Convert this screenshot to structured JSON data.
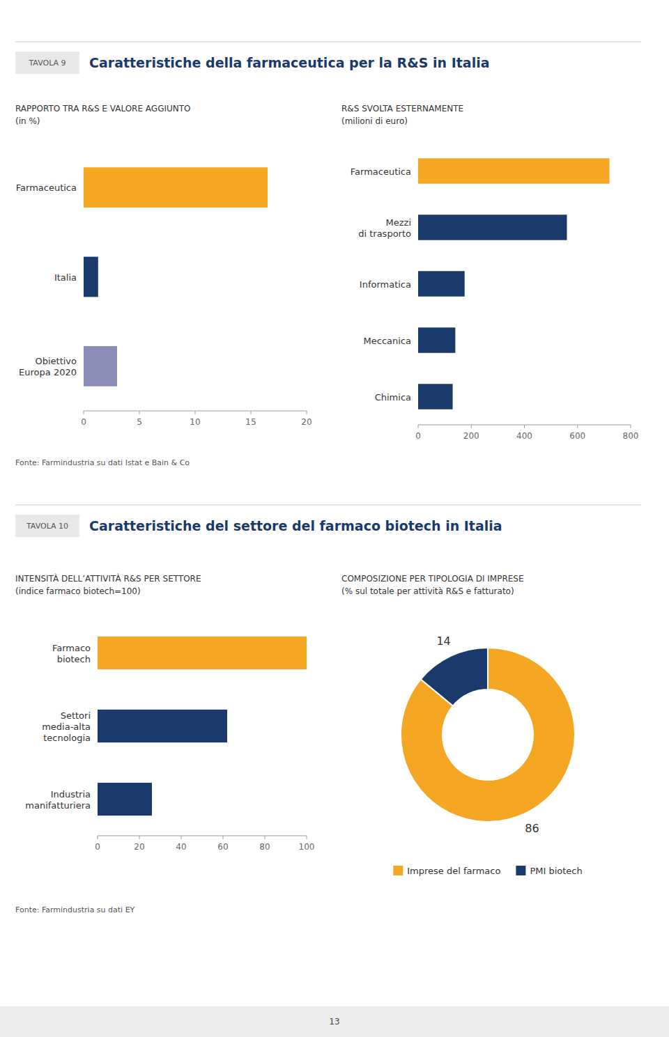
{
  "chart_data": [
    {
      "type": "bar",
      "orientation": "horizontal",
      "title": "RAPPORTO TRA R&S E VALORE AGGIUNTO",
      "subtitle": "(in %)",
      "categories": [
        "Farmaceutica",
        "Italia",
        "Obiettivo\nEuropa 2020"
      ],
      "values": [
        16.5,
        1.3,
        3.0
      ],
      "colors": [
        "#f5a623",
        "#1a3a6b",
        "#8b8db8"
      ],
      "xlim": [
        0,
        20
      ],
      "xticks": [
        0,
        5,
        10,
        15,
        20
      ],
      "grid": false,
      "data_labels": false,
      "annotations": [
        "TAVOLA 9",
        "Caratteristiche della farmaceutica per la R&S in Italia",
        "Fonte: Farmindustria su dati Istat e Bain & Co"
      ]
    },
    {
      "type": "bar",
      "orientation": "horizontal",
      "title": "R&S SVOLTA ESTERNAMENTE",
      "subtitle": "(milioni di euro)",
      "categories": [
        "Farmaceutica",
        "Mezzi\ndi trasporto",
        "Informatica",
        "Meccanica",
        "Chimica"
      ],
      "values": [
        720,
        560,
        175,
        140,
        130
      ],
      "colors": [
        "#f5a623",
        "#1a3a6b",
        "#1a3a6b",
        "#1a3a6b",
        "#1a3a6b"
      ],
      "xlim": [
        0,
        800
      ],
      "xticks": [
        0,
        200,
        400,
        600,
        800
      ],
      "grid": false,
      "data_labels": false
    },
    {
      "type": "bar",
      "orientation": "horizontal",
      "title": "INTENSITÀ DELL’ATTIVITÀ R&S PER SETTORE",
      "subtitle": "(indice farmaco biotech=100)",
      "categories": [
        "Farmaco\nbiotech",
        "Settori\nmedia-alta\ntecnologia",
        "Industria\nmanifatturiera"
      ],
      "values": [
        100,
        62,
        26
      ],
      "colors": [
        "#f5a623",
        "#1a3a6b",
        "#1a3a6b"
      ],
      "xlim": [
        0,
        100
      ],
      "xticks": [
        0,
        20,
        40,
        60,
        80,
        100
      ],
      "grid": false,
      "data_labels": false,
      "annotations": [
        "TAVOLA 10",
        "Caratteristiche del settore del farmaco biotech in Italia",
        "Fonte: Farmindustria su dati EY"
      ]
    },
    {
      "type": "donut",
      "title": "COMPOSIZIONE PER TIPOLOGIA DI IMPRESE",
      "subtitle": "(% sul totale per attività R&S e fatturato)",
      "categories": [
        "Imprese del farmaco",
        "PMI biotech"
      ],
      "values": [
        86,
        14
      ],
      "colors": [
        "#f5a623",
        "#1a3a6b"
      ],
      "data_labels": true,
      "legend": "bottom",
      "annotations": [
        "13"
      ]
    }
  ]
}
